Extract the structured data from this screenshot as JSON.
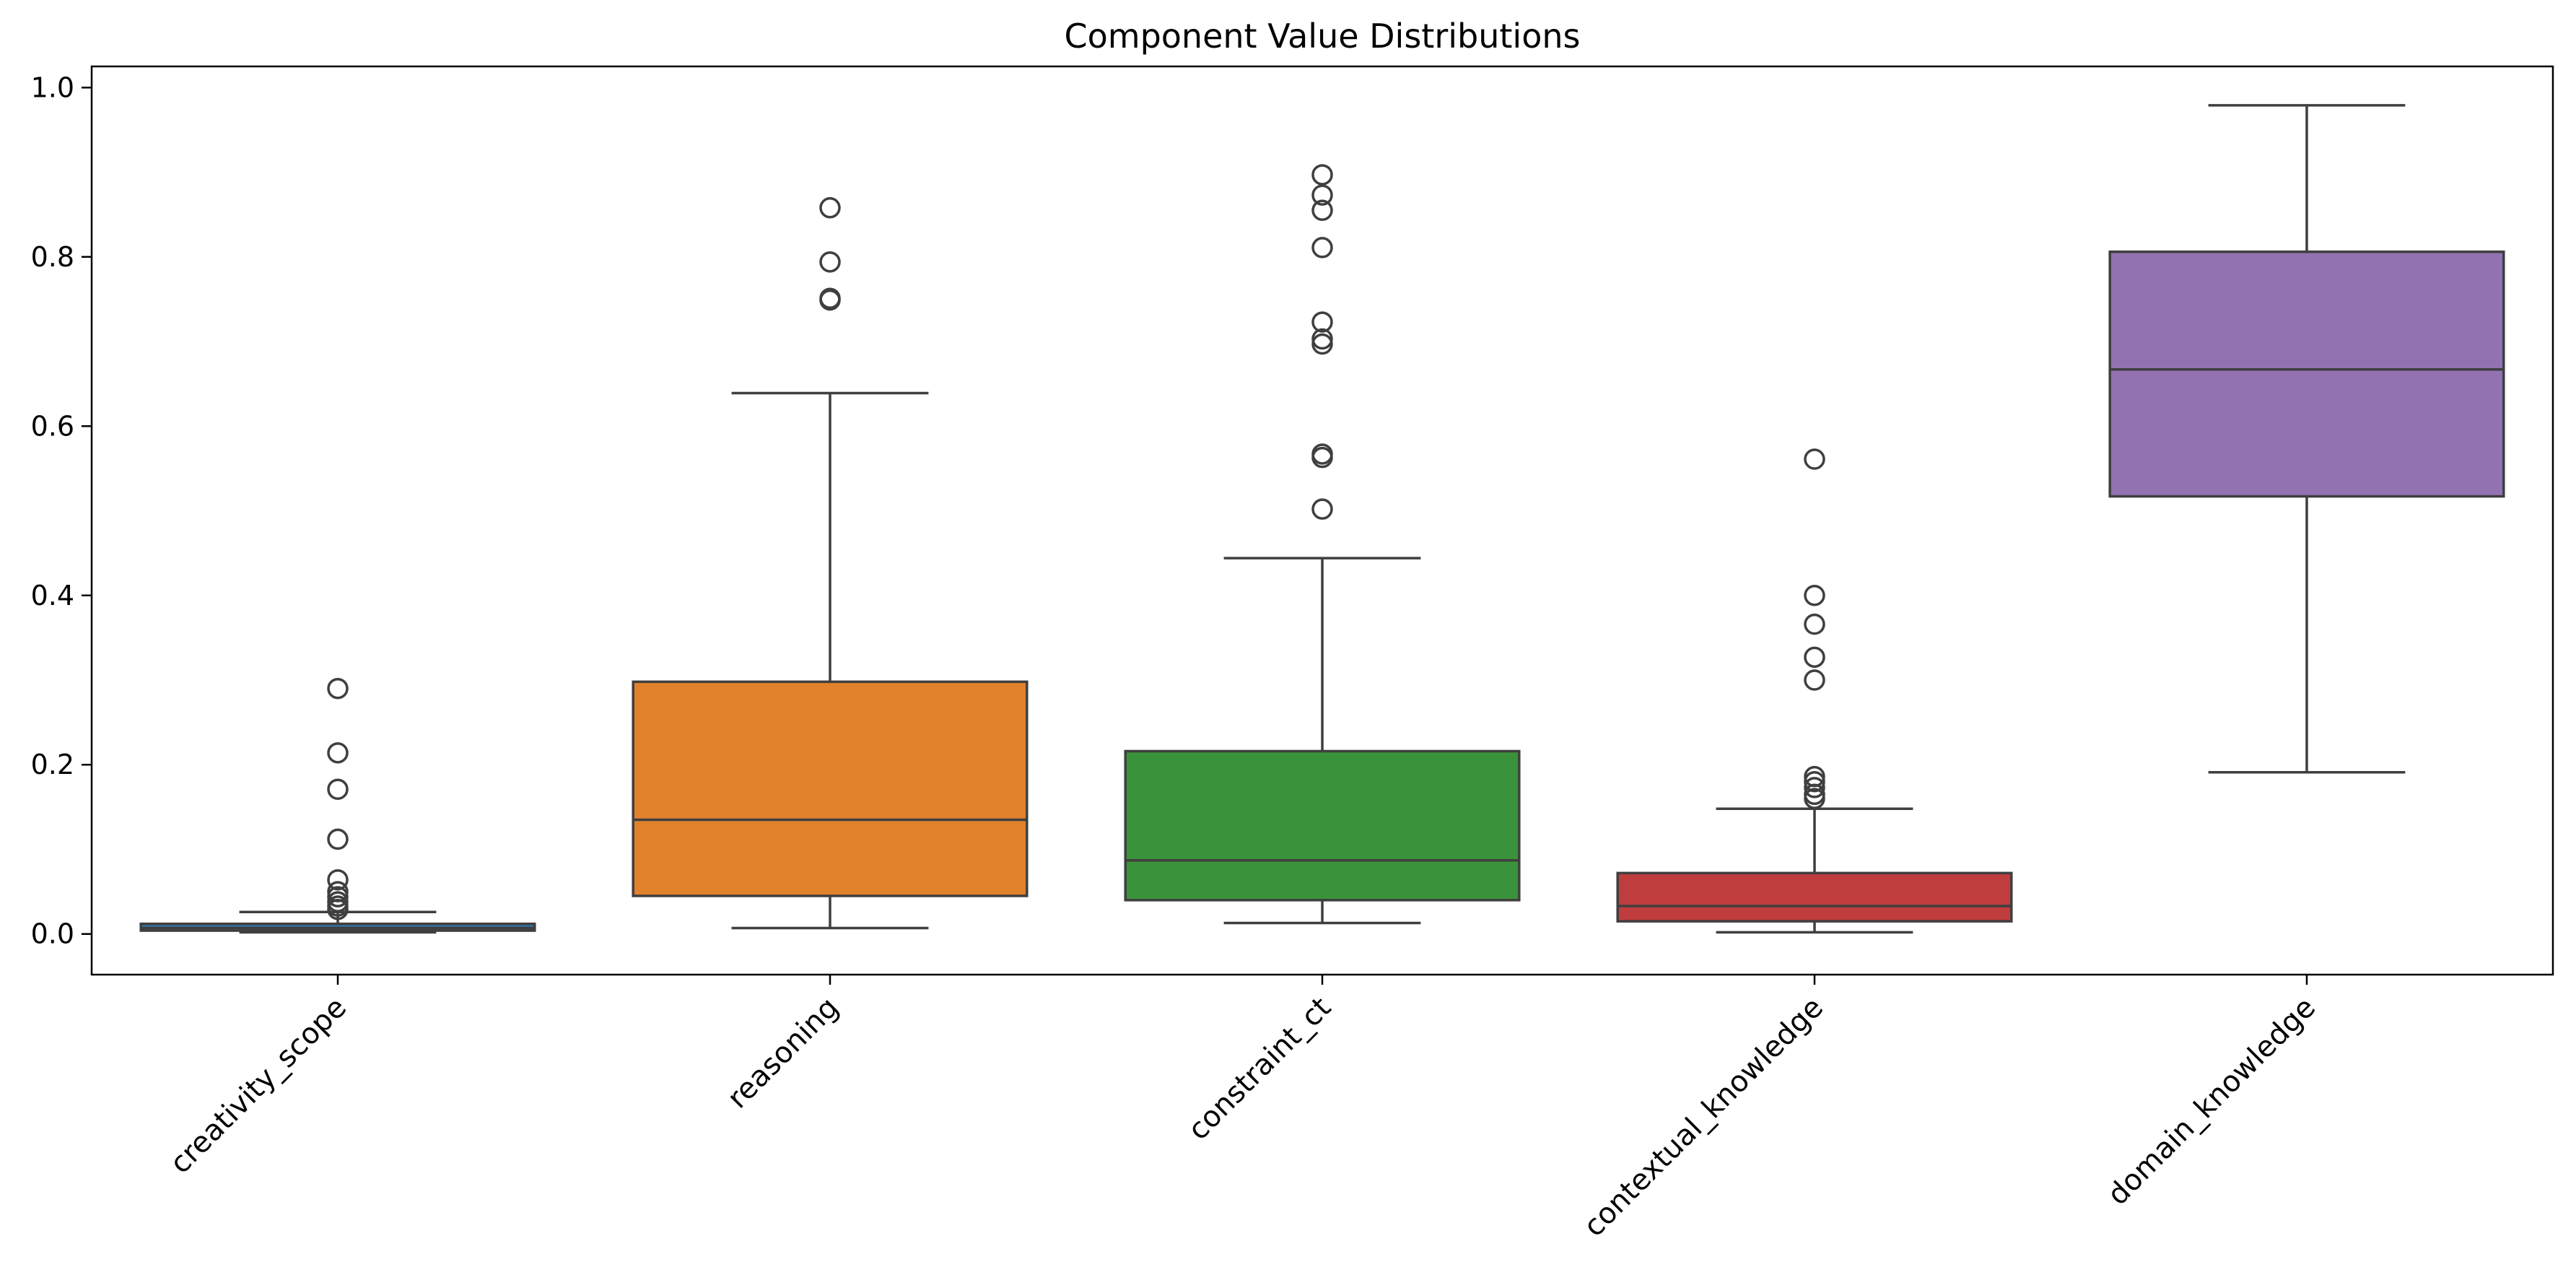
{
  "chart_data": {
    "type": "box",
    "title": "Component Value Distributions",
    "xlabel": "",
    "ylabel": "",
    "ylim": [
      -0.048,
      1.025
    ],
    "yticks": [
      0.0,
      0.2,
      0.4,
      0.6,
      0.8,
      1.0
    ],
    "ytick_labels": [
      "0.0",
      "0.2",
      "0.4",
      "0.6",
      "0.8",
      "1.0"
    ],
    "grid": false,
    "legend": "none",
    "xtick_rotation_deg": 45,
    "categories": [
      "creativity_scope",
      "reasoning",
      "constraint_ct",
      "contextual_knowledge",
      "domain_knowledge"
    ],
    "boxes": [
      {
        "category": "creativity_scope",
        "color": "#3274a1",
        "whisker_low": 0.002,
        "q1": 0.004,
        "median": 0.007,
        "q3": 0.012,
        "whisker_high": 0.026,
        "outliers": [
          0.29,
          0.214,
          0.171,
          0.112,
          0.064,
          0.05,
          0.044,
          0.038,
          0.033,
          0.029
        ]
      },
      {
        "category": "reasoning",
        "color": "#e1812c",
        "whisker_low": 0.007,
        "q1": 0.045,
        "median": 0.135,
        "q3": 0.298,
        "whisker_high": 0.639,
        "outliers": [
          0.858,
          0.794,
          0.751,
          0.749
        ]
      },
      {
        "category": "constraint_ct",
        "color": "#3a923a",
        "whisker_low": 0.013,
        "q1": 0.04,
        "median": 0.087,
        "q3": 0.216,
        "whisker_high": 0.444,
        "outliers": [
          0.897,
          0.873,
          0.855,
          0.811,
          0.723,
          0.703,
          0.697,
          0.567,
          0.563,
          0.502
        ]
      },
      {
        "category": "contextual_knowledge",
        "color": "#c03d3e",
        "whisker_low": 0.002,
        "q1": 0.015,
        "median": 0.033,
        "q3": 0.072,
        "whisker_high": 0.148,
        "outliers": [
          0.561,
          0.4,
          0.366,
          0.327,
          0.3,
          0.186,
          0.18,
          0.173,
          0.165,
          0.16
        ]
      },
      {
        "category": "domain_knowledge",
        "color": "#9372b2",
        "whisker_low": 0.191,
        "q1": 0.517,
        "median": 0.667,
        "q3": 0.806,
        "whisker_high": 0.979,
        "outliers": []
      }
    ]
  }
}
